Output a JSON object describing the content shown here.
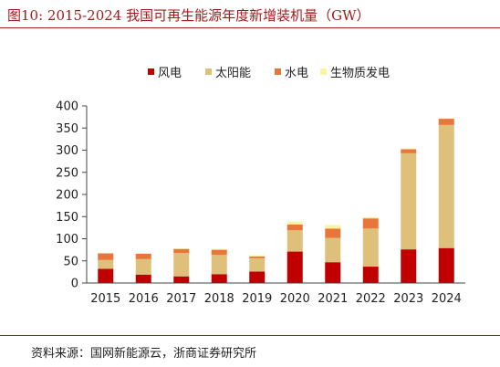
{
  "header": {
    "title": "图10:   2015-2024 我国可再生能源年度新增装机量（GW）"
  },
  "footer": {
    "source": "资料来源：国网新能源云，浙商证券研究所"
  },
  "colors": {
    "accent": "#a61b1b",
    "wind": "#c00000",
    "solar": "#dfc07a",
    "hydro": "#e8753a",
    "biomass": "#fff3a3"
  },
  "chart_data": {
    "type": "bar",
    "stacked": true,
    "categories": [
      "2015",
      "2016",
      "2017",
      "2018",
      "2019",
      "2020",
      "2021",
      "2022",
      "2023",
      "2024"
    ],
    "series": [
      {
        "name": "风电",
        "color": "#c00000",
        "values": [
          32,
          19,
          15,
          20,
          26,
          71,
          47,
          37,
          76,
          79
        ]
      },
      {
        "name": "太阳能",
        "color": "#dfc07a",
        "values": [
          20,
          35,
          53,
          44,
          30,
          48,
          55,
          86,
          217,
          278
        ]
      },
      {
        "name": "水电",
        "color": "#e8753a",
        "values": [
          15,
          12,
          9,
          11,
          4,
          13,
          21,
          23,
          9,
          14
        ]
      },
      {
        "name": "生物质发电",
        "color": "#fff3a3",
        "values": [
          0,
          1,
          1,
          2,
          3,
          7,
          8,
          3,
          2,
          1
        ]
      }
    ],
    "ylim": [
      0,
      400
    ],
    "yticks": [
      0,
      50,
      100,
      150,
      200,
      250,
      300,
      350,
      400
    ],
    "legend_position": "top",
    "grid": false
  }
}
